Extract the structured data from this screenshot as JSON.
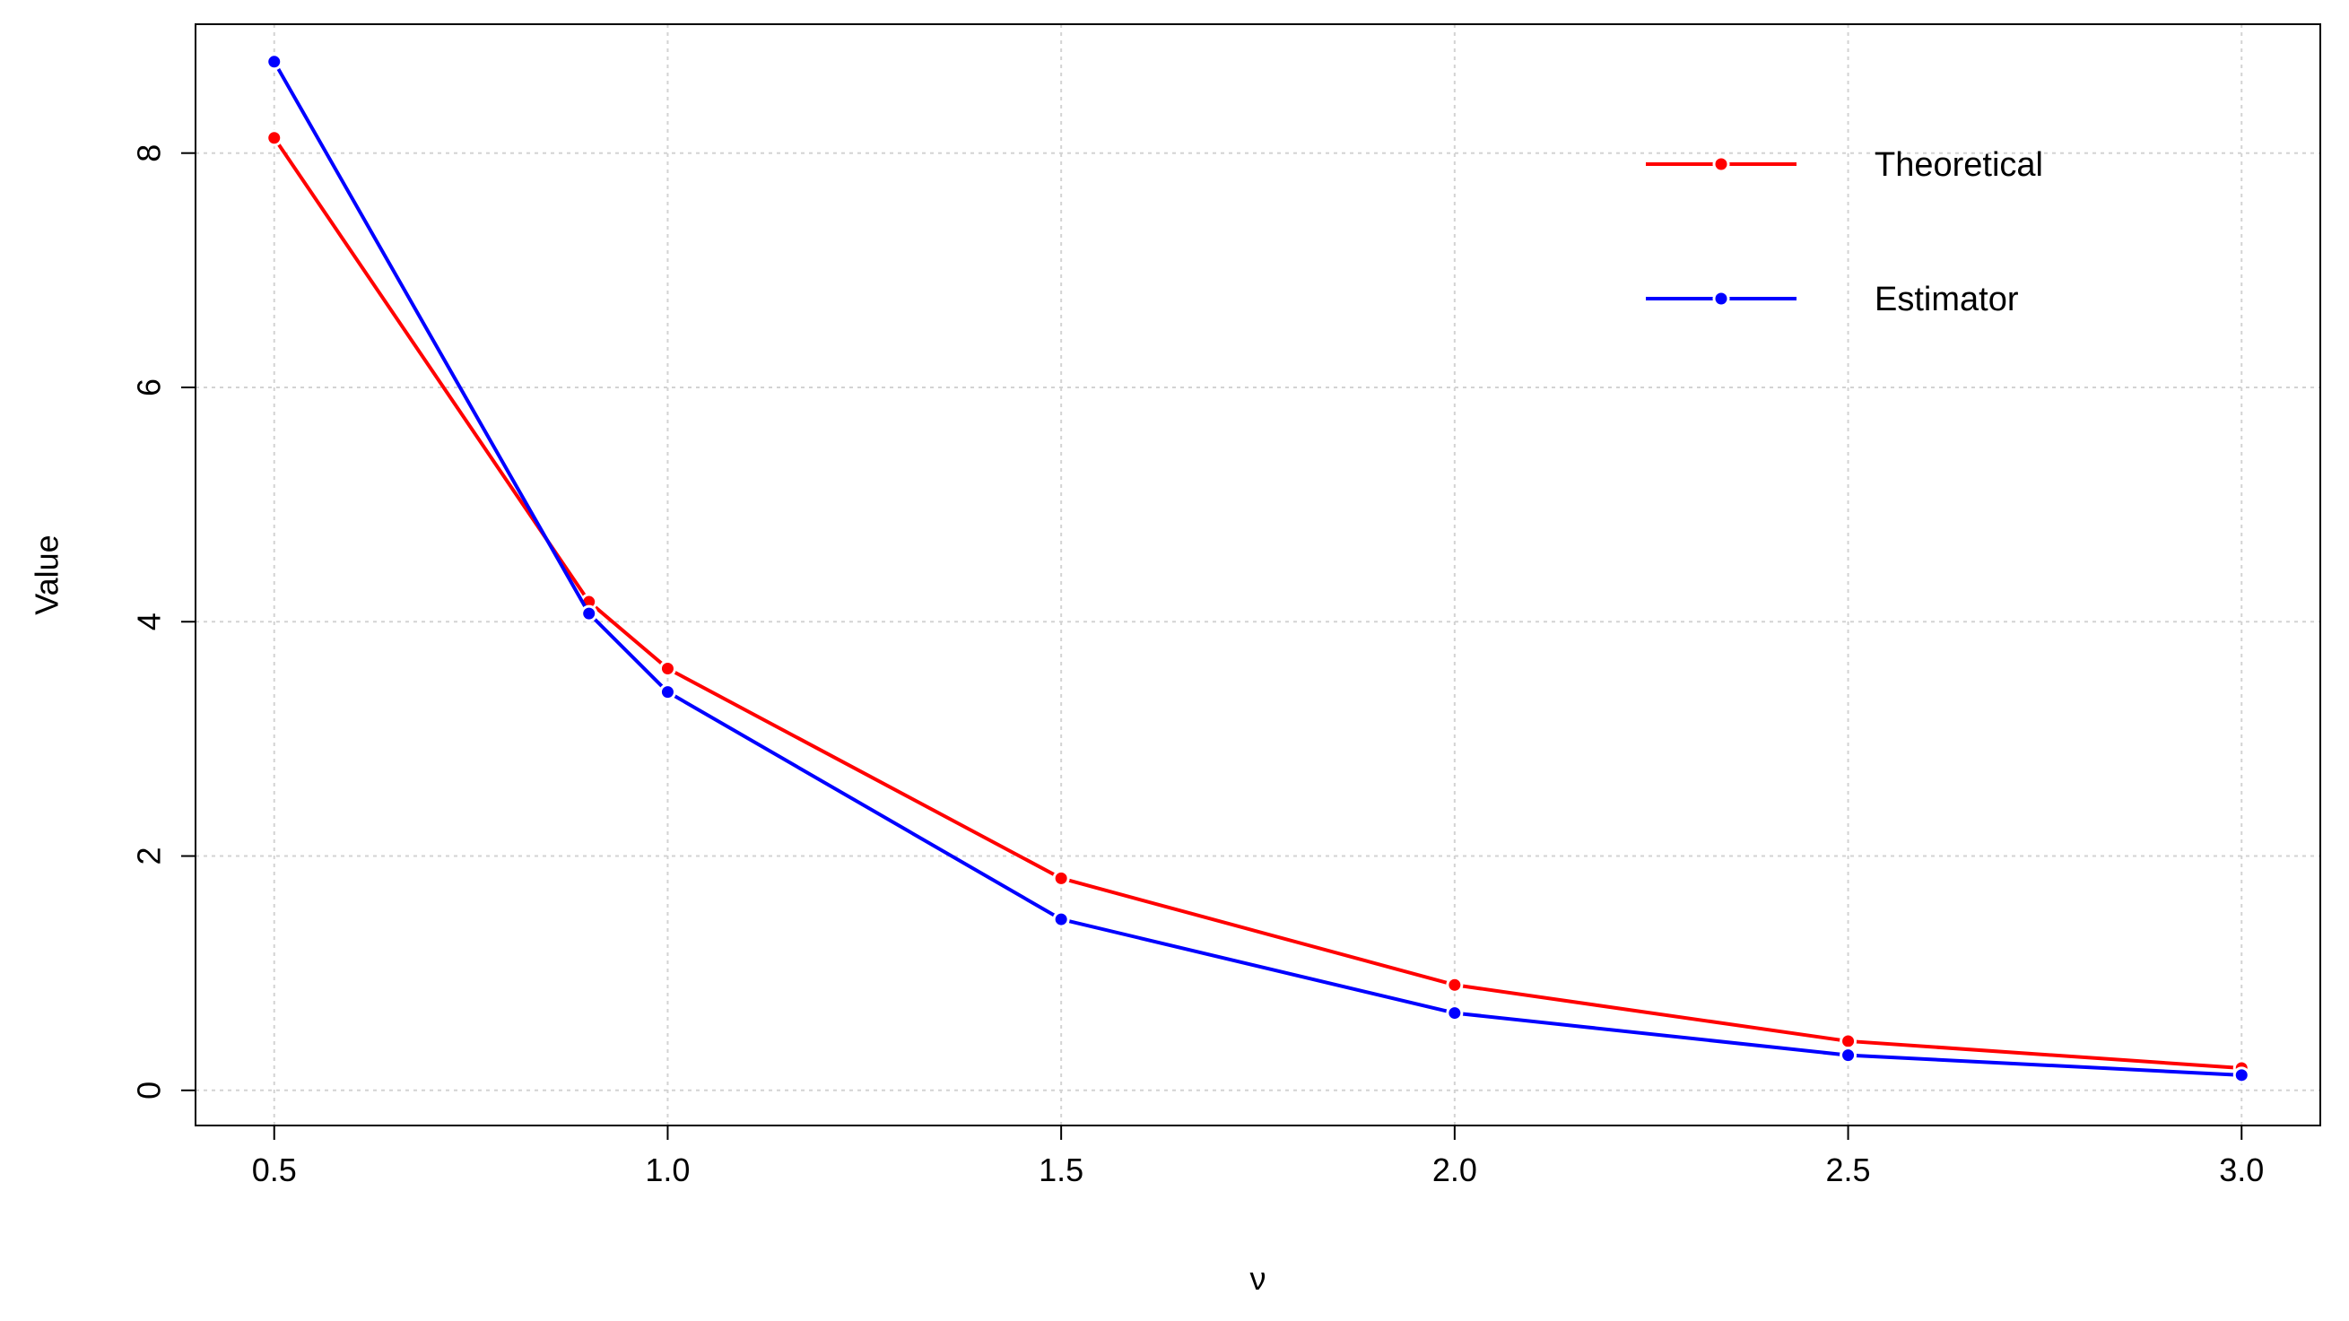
{
  "chart_data": {
    "type": "line",
    "xlabel": "ν",
    "ylabel": "Value",
    "x": [
      0.5,
      0.9,
      1.0,
      1.5,
      2.0,
      2.5,
      3.0
    ],
    "xlim": [
      0.4,
      3.1
    ],
    "ylim": [
      -0.3,
      9.1
    ],
    "x_ticks": [
      0.5,
      1.0,
      1.5,
      2.0,
      2.5,
      3.0
    ],
    "x_tick_labels": [
      "0.5",
      "1.0",
      "1.5",
      "2.0",
      "2.5",
      "3.0"
    ],
    "y_ticks": [
      0,
      2,
      4,
      6,
      8
    ],
    "y_tick_labels": [
      "0",
      "2",
      "4",
      "6",
      "8"
    ],
    "grid": true,
    "legend_position": "top-right",
    "series": [
      {
        "name": "Theoretical",
        "color": "#ff0000",
        "values": [
          8.13,
          4.17,
          3.6,
          1.81,
          0.9,
          0.42,
          0.19
        ]
      },
      {
        "name": "Estimator",
        "color": "#0000ff",
        "values": [
          8.78,
          4.07,
          3.4,
          1.46,
          0.66,
          0.3,
          0.13
        ]
      }
    ]
  }
}
